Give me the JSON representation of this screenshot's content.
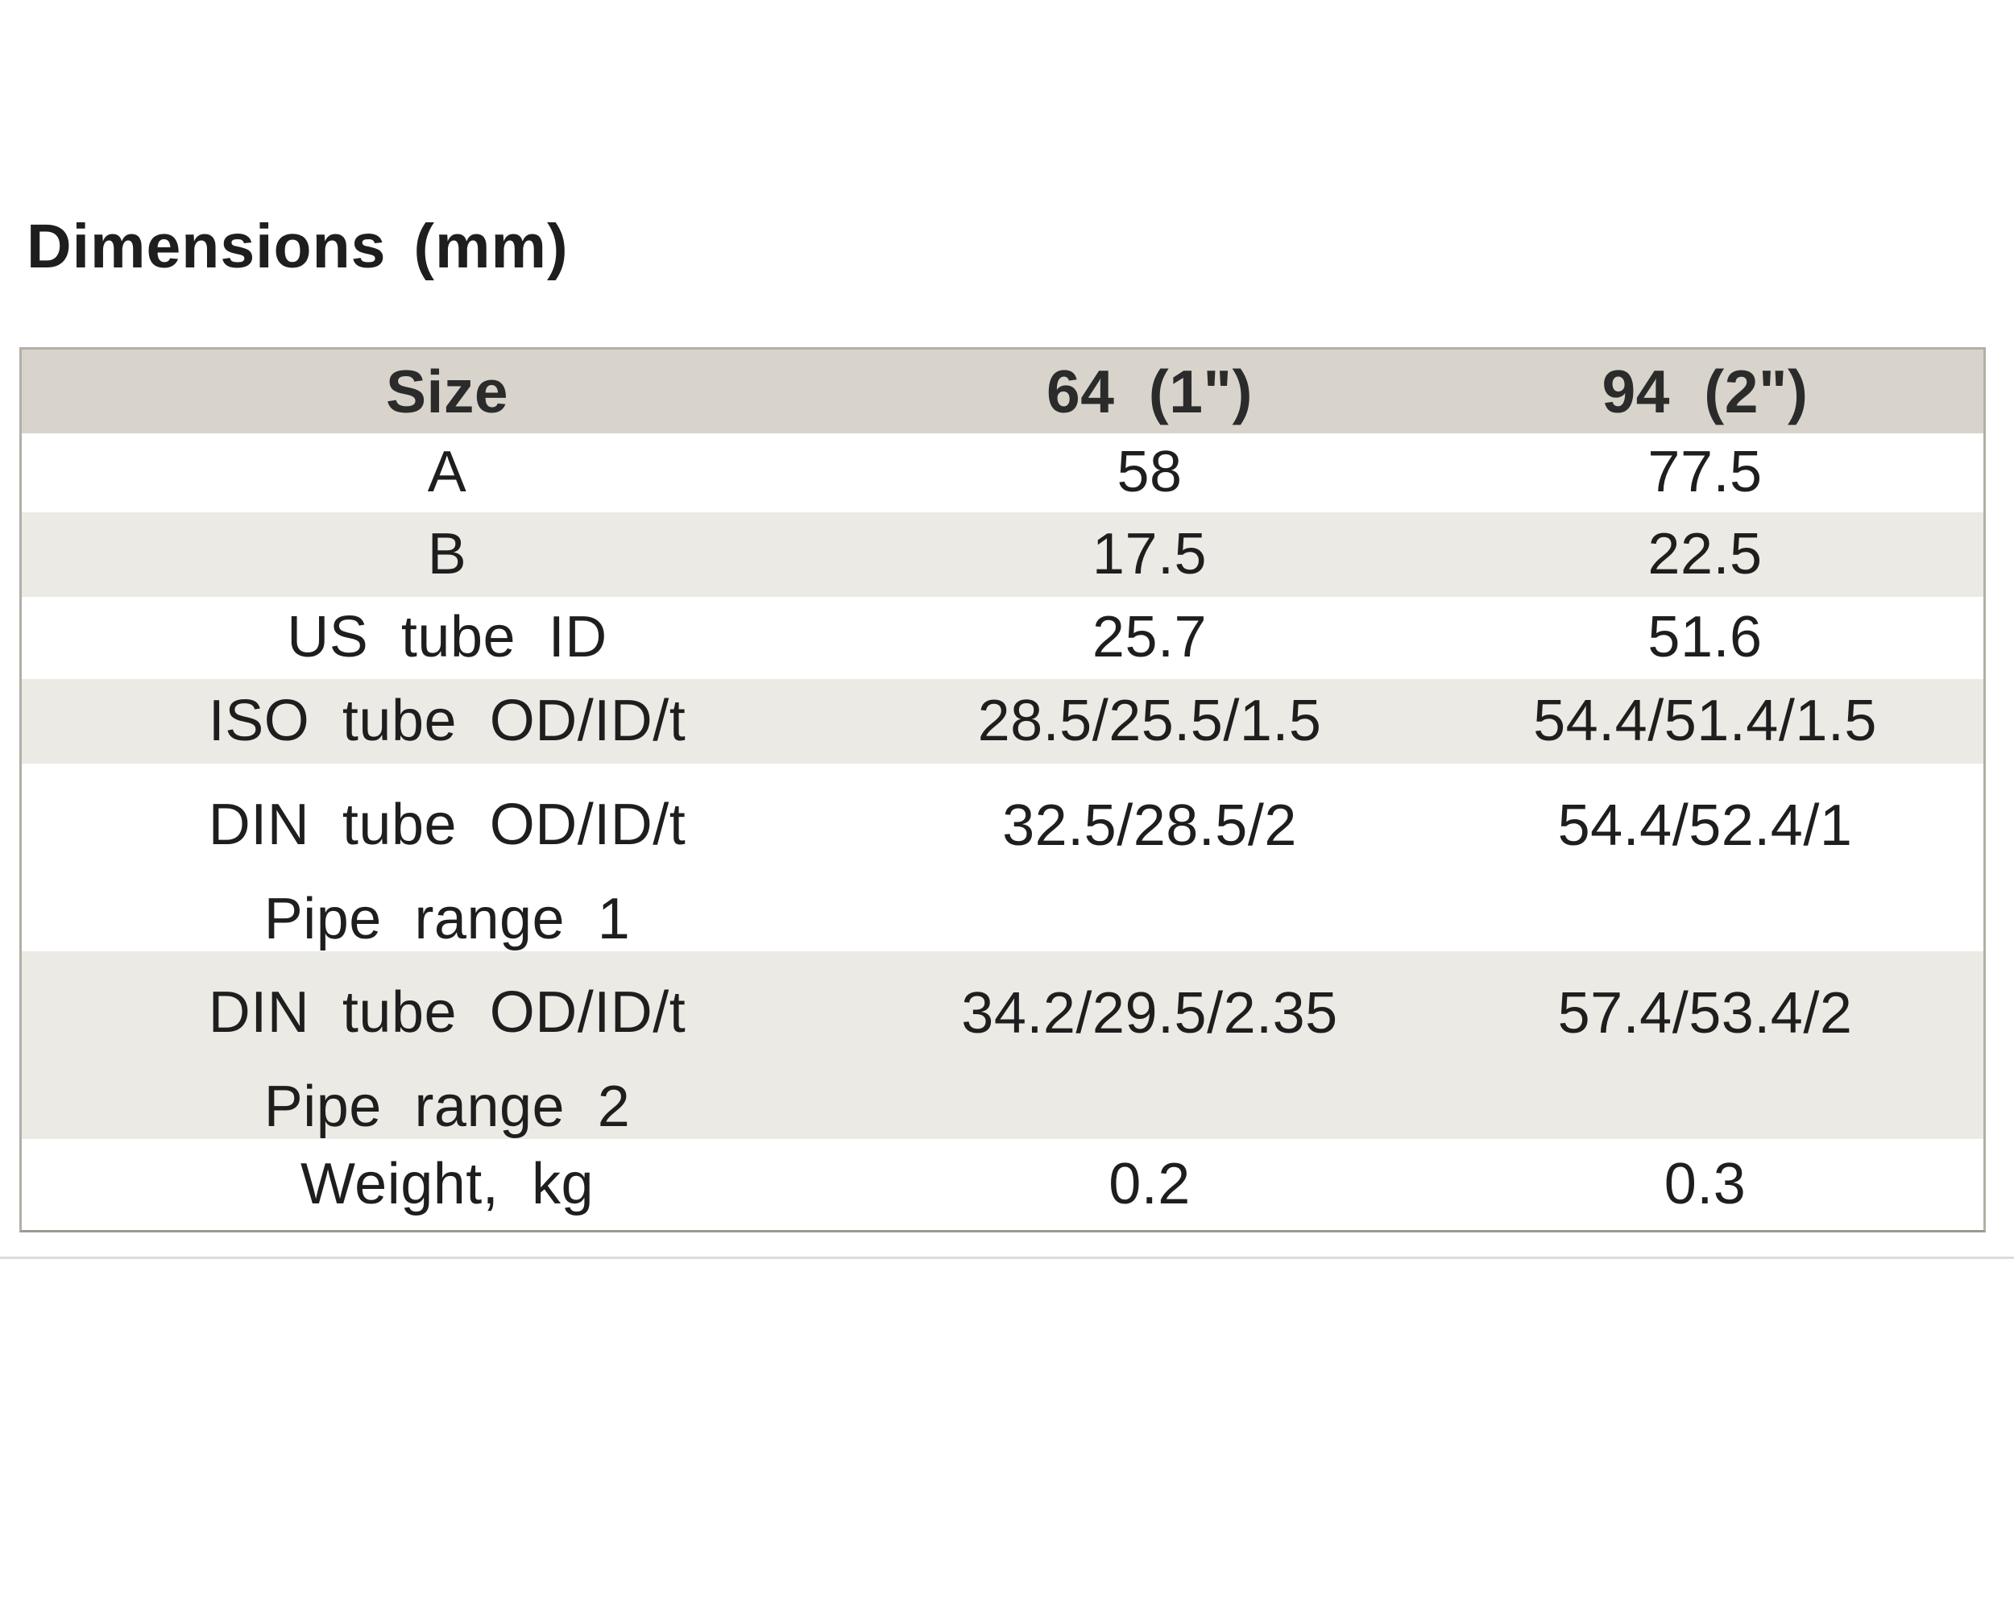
{
  "page_title": "Dimensions (mm)",
  "table": {
    "columns": [
      "Size",
      "64 (1\")",
      "94 (2\")"
    ],
    "rows": [
      {
        "label": "A",
        "values": [
          "58",
          "77.5"
        ]
      },
      {
        "label": "B",
        "values": [
          "17.5",
          "22.5"
        ]
      },
      {
        "label": "US tube ID",
        "values": [
          "25.7",
          "51.6"
        ]
      },
      {
        "label": "ISO tube OD/ID/t",
        "values": [
          "28.5/25.5/1.5",
          "54.4/51.4/1.5"
        ]
      },
      {
        "label": "DIN tube OD/ID/t",
        "sublabel": "Pipe range 1",
        "values": [
          "32.5/28.5/2",
          "54.4/52.4/1"
        ]
      },
      {
        "label": "DIN tube OD/ID/t",
        "sublabel": "Pipe range 2",
        "values": [
          "34.2/29.5/2.35",
          "57.4/53.4/2"
        ]
      },
      {
        "label": "Weight, kg",
        "values": [
          "0.2",
          "0.3"
        ]
      }
    ]
  },
  "colors": {
    "page-bg": "#ffffff",
    "text": "#1e1e1e",
    "header-bg": "#d8d4cc",
    "row-gray": "#eceae5",
    "row-white": "#ffffff",
    "table-border": "#b3afa7",
    "divider": "#dcdcda"
  }
}
